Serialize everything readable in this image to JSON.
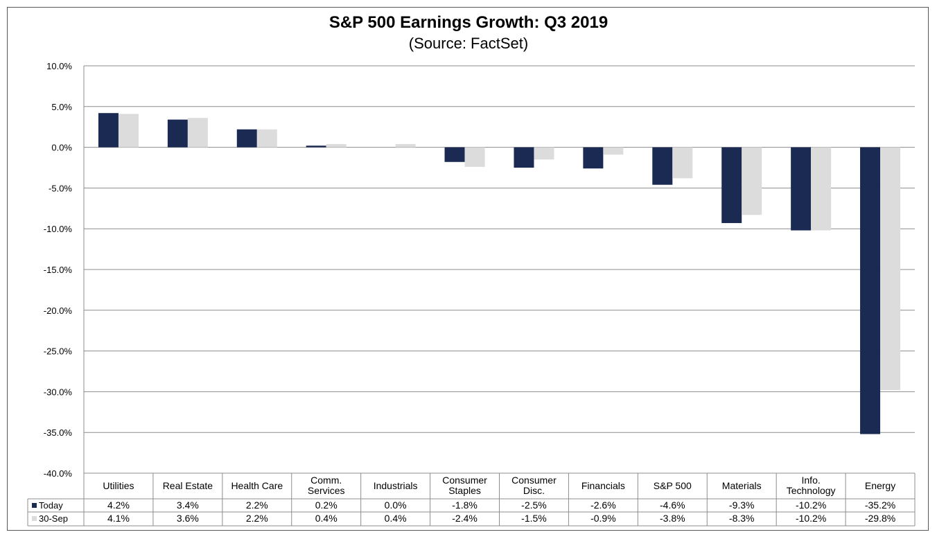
{
  "chart_data": {
    "type": "bar",
    "title": "S&P 500 Earnings Growth: Q3 2019",
    "subtitle": "(Source: FactSet)",
    "categories": [
      [
        "Utilities"
      ],
      [
        "Real Estate"
      ],
      [
        "Health Care"
      ],
      [
        "Comm.",
        "Services"
      ],
      [
        "Industrials"
      ],
      [
        "Consumer",
        "Staples"
      ],
      [
        "Consumer",
        "Disc."
      ],
      [
        "Financials"
      ],
      [
        "S&P 500"
      ],
      [
        "Materials"
      ],
      [
        "Info.",
        "Technology"
      ],
      [
        "Energy"
      ]
    ],
    "series": [
      {
        "name": "Today",
        "color": "#1a2a52",
        "values": [
          4.2,
          3.4,
          2.2,
          0.2,
          0.0,
          -1.8,
          -2.5,
          -2.6,
          -4.6,
          -9.3,
          -10.2,
          -35.2
        ],
        "labels": [
          "4.2%",
          "3.4%",
          "2.2%",
          "0.2%",
          "0.0%",
          "-1.8%",
          "-2.5%",
          "-2.6%",
          "-4.6%",
          "-9.3%",
          "-10.2%",
          "-35.2%"
        ]
      },
      {
        "name": "30-Sep",
        "color": "#dcdcdc",
        "values": [
          4.1,
          3.6,
          2.2,
          0.4,
          0.4,
          -2.4,
          -1.5,
          -0.9,
          -3.8,
          -8.3,
          -10.2,
          -29.8
        ],
        "labels": [
          "4.1%",
          "3.6%",
          "2.2%",
          "0.4%",
          "0.4%",
          "-2.4%",
          "-1.5%",
          "-0.9%",
          "-3.8%",
          "-8.3%",
          "-10.2%",
          "-29.8%"
        ]
      }
    ],
    "ylim": [
      -40,
      10
    ],
    "yticks": [
      "10.0%",
      "5.0%",
      "0.0%",
      "-5.0%",
      "-10.0%",
      "-15.0%",
      "-20.0%",
      "-25.0%",
      "-30.0%",
      "-35.0%",
      "-40.0%"
    ],
    "ytick_values": [
      10,
      5,
      0,
      -5,
      -10,
      -15,
      -20,
      -25,
      -30,
      -35,
      -40
    ],
    "grid": true,
    "legend": "data-table"
  }
}
